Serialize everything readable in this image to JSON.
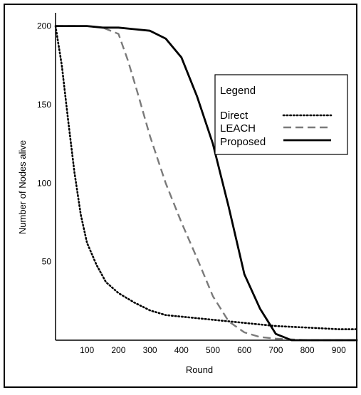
{
  "chart_data": {
    "type": "line",
    "title": "",
    "xlabel": "Round",
    "ylabel": "Number of Nodes alive",
    "xlim": [
      0,
      1000
    ],
    "ylim": [
      0,
      210
    ],
    "xticks": [
      100,
      200,
      300,
      400,
      500,
      600,
      700,
      800,
      900
    ],
    "yticks": [
      50,
      100,
      150,
      200
    ],
    "grid": false,
    "legend": {
      "title": "Legend",
      "placement": "top-right",
      "entries": [
        "Direct",
        "LEACH",
        "Proposed"
      ]
    },
    "series": [
      {
        "name": "Direct",
        "style": "dotted",
        "color": "#000000",
        "x": [
          0,
          20,
          40,
          60,
          80,
          100,
          130,
          160,
          200,
          250,
          300,
          350,
          400,
          450,
          500,
          550,
          600,
          650,
          700,
          800,
          900,
          960
        ],
        "y": [
          200,
          175,
          140,
          107,
          80,
          62,
          48,
          37,
          30,
          24,
          19,
          16,
          15,
          14,
          13,
          12,
          11,
          10,
          9,
          8,
          7,
          7
        ]
      },
      {
        "name": "LEACH",
        "style": "dashed",
        "color": "#000000",
        "x": [
          0,
          50,
          100,
          150,
          200,
          230,
          260,
          300,
          350,
          400,
          450,
          500,
          550,
          600,
          650,
          700,
          800,
          900,
          960
        ],
        "y": [
          200,
          200,
          200,
          199,
          195,
          178,
          158,
          130,
          100,
          75,
          52,
          28,
          12,
          5,
          2,
          1,
          0,
          0,
          0
        ]
      },
      {
        "name": "Proposed",
        "style": "solid",
        "color": "#000000",
        "x": [
          0,
          50,
          100,
          150,
          200,
          250,
          300,
          350,
          400,
          450,
          500,
          550,
          600,
          650,
          700,
          750,
          800,
          900,
          960
        ],
        "y": [
          200,
          200,
          200,
          199,
          199,
          198,
          197,
          192,
          180,
          155,
          125,
          85,
          42,
          20,
          4,
          0,
          0,
          0,
          0
        ]
      }
    ]
  }
}
